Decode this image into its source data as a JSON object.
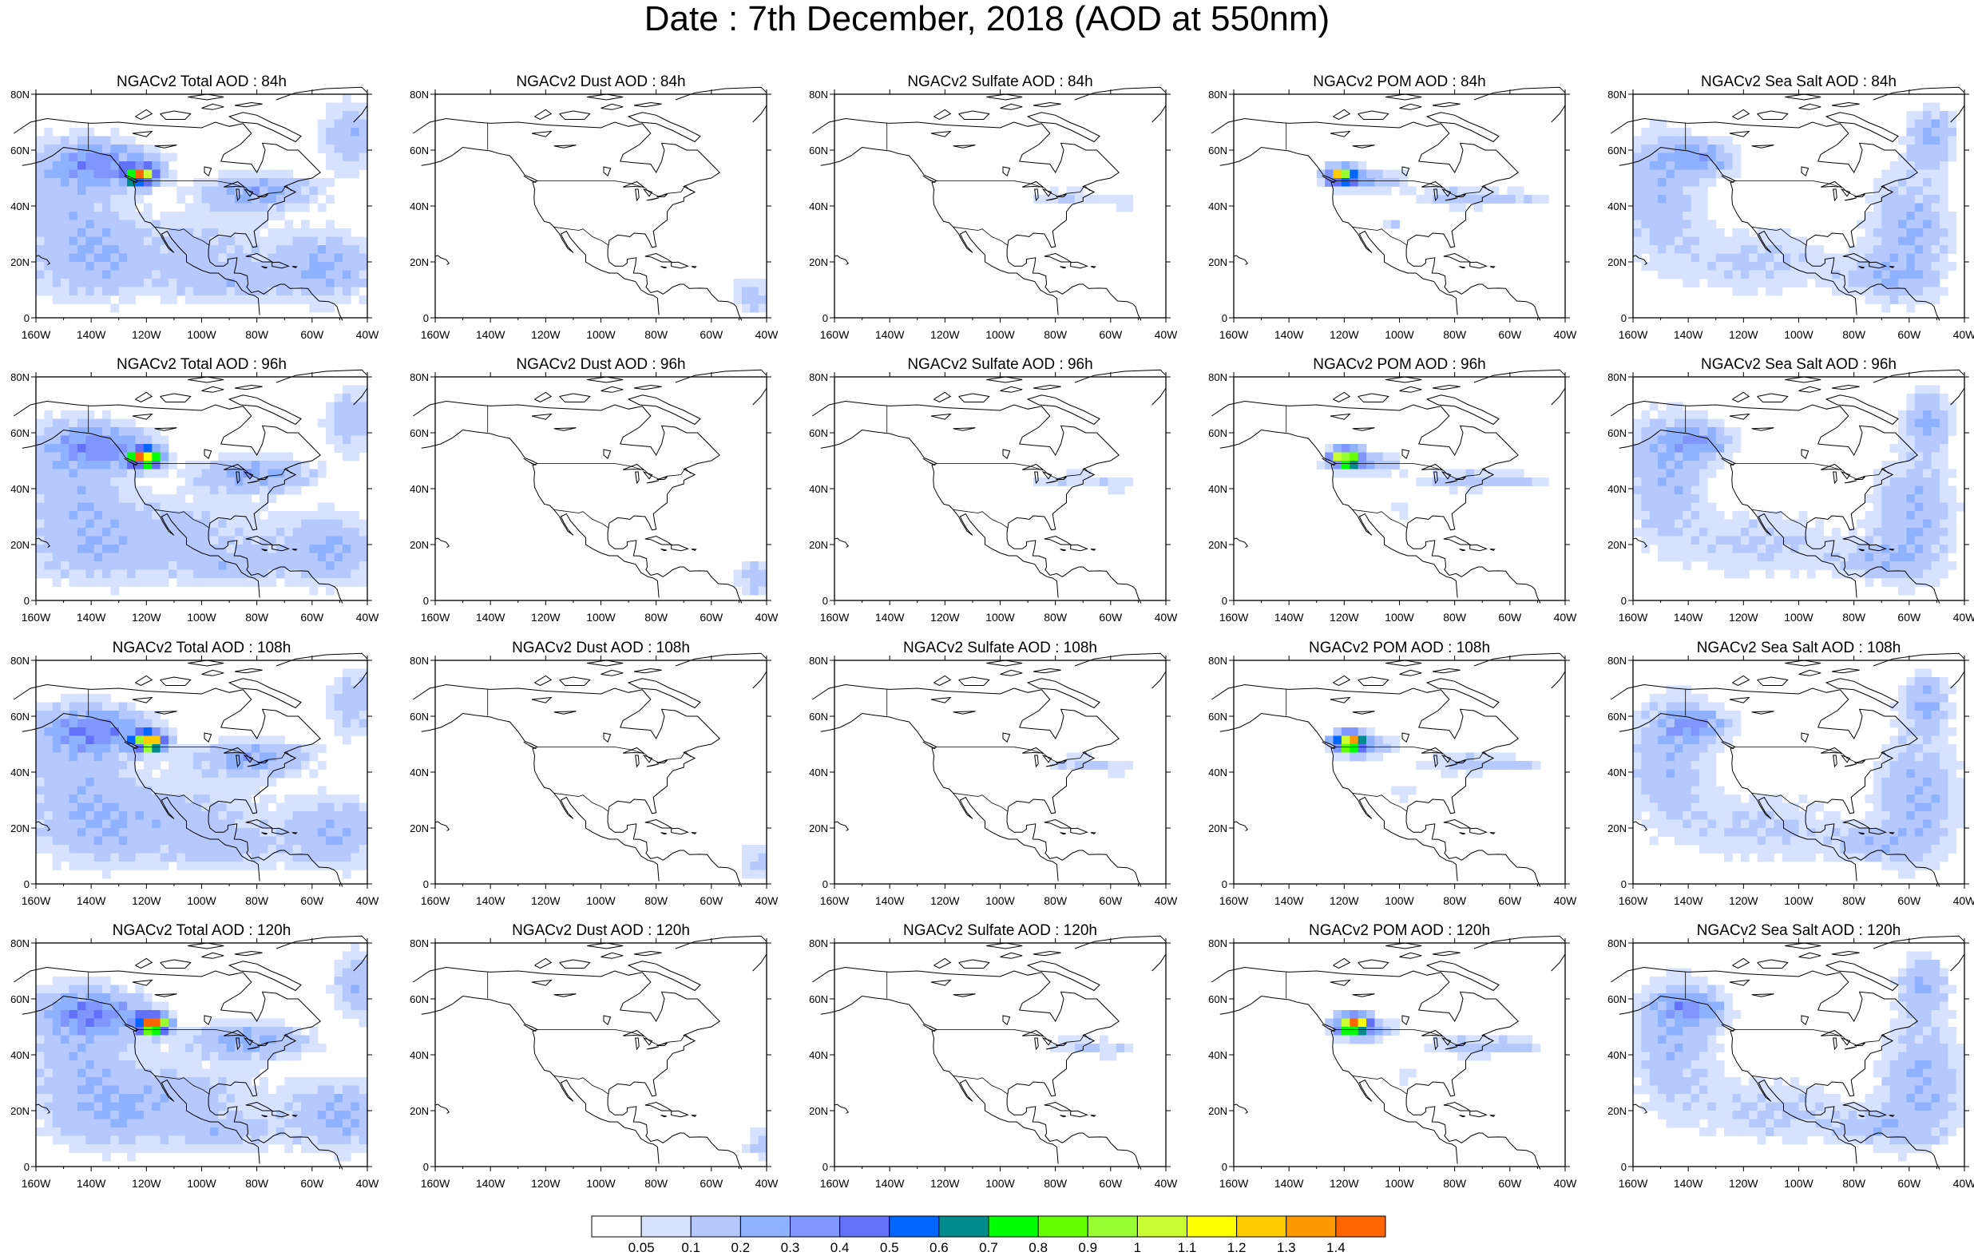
{
  "title": "Date : 7th December, 2018 (AOD at 550nm)",
  "panel_rows": [
    [
      "NGACv2 Total AOD : 84h",
      "NGACv2 Dust AOD : 84h",
      "NGACv2 Sulfate AOD : 84h",
      "NGACv2 POM AOD : 84h",
      "NGACv2 Sea Salt AOD : 84h"
    ],
    [
      "NGACv2 Total AOD : 96h",
      "NGACv2 Dust AOD : 96h",
      "NGACv2 Sulfate AOD : 96h",
      "NGACv2 POM AOD : 96h",
      "NGACv2 Sea Salt AOD : 96h"
    ],
    [
      "NGACv2 Total AOD : 108h",
      "NGACv2 Dust AOD : 108h",
      "NGACv2 Sulfate AOD : 108h",
      "NGACv2 POM AOD : 108h",
      "NGACv2 Sea Salt AOD : 108h"
    ],
    [
      "NGACv2 Total AOD : 120h",
      "NGACv2 Dust AOD : 120h",
      "NGACv2 Sulfate AOD : 120h",
      "NGACv2 POM AOD : 120h",
      "NGACv2 Sea Salt  AOD : 120h"
    ]
  ],
  "lat_ticks": [
    "80N",
    "60N",
    "40N",
    "20N",
    "0"
  ],
  "lon_ticks": [
    "160W",
    "140W",
    "120W",
    "100W",
    "80W",
    "60W",
    "40W"
  ],
  "colorbar": {
    "labels": [
      "0.05",
      "0.1",
      "0.2",
      "0.3",
      "0.4",
      "0.5",
      "0.6",
      "0.7",
      "0.8",
      "0.9",
      "1",
      "1.1",
      "1.2",
      "1.3",
      "1.4"
    ],
    "colors": [
      "#ffffff",
      "#d6e2ff",
      "#b5c9ff",
      "#8eb2ff",
      "#7f96ff",
      "#6370f8",
      "#0066ff",
      "#008c8c",
      "#00ff00",
      "#66ff00",
      "#99ff33",
      "#ccff33",
      "#ffff00",
      "#ffcc00",
      "#ff9900",
      "#ff6600",
      "#ff0000"
    ]
  }
}
